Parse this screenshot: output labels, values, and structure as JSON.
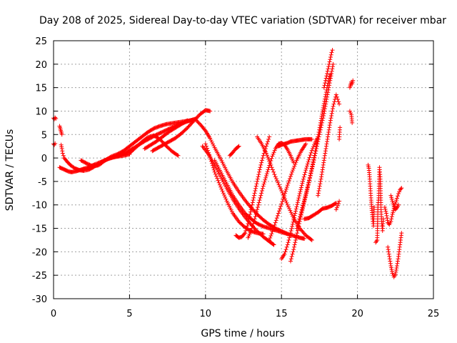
{
  "chart_data": {
    "type": "scatter",
    "title": "Day 208 of 2025, Sidereal Day-to-day VTEC variation (SDTVAR) for receiver mbar",
    "xlabel": "GPS time / hours",
    "ylabel": "SDTVAR / TECUs",
    "xlim": [
      0,
      25
    ],
    "ylim": [
      -30,
      25
    ],
    "xticks": [
      "0",
      "5",
      "10",
      "15",
      "20",
      "25"
    ],
    "yticks": [
      "25",
      "20",
      "15",
      "10",
      "5",
      "0",
      "-5",
      "-10",
      "-15",
      "-20",
      "-25",
      "-30"
    ],
    "grid": true,
    "marker": "+",
    "color": "#ff0000",
    "series": [
      {
        "x": [
          0.0,
          0.05,
          0.1,
          0.15,
          0.0,
          0.05,
          0.1
        ],
        "y": [
          8.5,
          8.3,
          8.6,
          8.4,
          3.0,
          2.8,
          3.1
        ]
      },
      {
        "x": [
          0.4,
          0.45,
          0.5,
          0.55,
          0.5,
          0.55,
          0.6,
          0.7,
          0.9,
          1.1,
          1.4,
          1.7,
          2.0,
          2.3,
          2.6,
          2.9,
          3.2,
          3.5,
          3.8,
          4.2,
          4.6,
          5.0
        ],
        "y": [
          6.8,
          6.2,
          5.6,
          5.0,
          2.8,
          2.0,
          1.0,
          0.0,
          -0.8,
          -1.5,
          -2.2,
          -2.6,
          -2.7,
          -2.5,
          -2.0,
          -1.4,
          -0.8,
          -0.3,
          0.1,
          0.3,
          0.5,
          0.8
        ]
      },
      {
        "x": [
          0.4,
          0.6,
          0.8,
          1.0,
          1.2,
          1.5,
          1.8,
          2.1,
          2.4,
          2.7,
          3.0,
          3.3,
          3.6,
          4.0,
          4.4,
          4.8,
          5.2,
          5.6,
          6.0,
          6.4,
          6.8,
          7.2,
          7.6,
          8.0,
          8.4,
          8.8,
          9.2,
          9.4
        ],
        "y": [
          -2.0,
          -2.3,
          -2.6,
          -2.9,
          -3.0,
          -2.8,
          -2.5,
          -2.2,
          -1.8,
          -1.4,
          -1.0,
          -0.6,
          -0.2,
          0.2,
          0.6,
          1.2,
          2.0,
          2.8,
          3.6,
          4.3,
          5.0,
          5.6,
          6.2,
          6.8,
          7.3,
          7.8,
          8.2,
          8.4
        ]
      },
      {
        "x": [
          1.8,
          2.2,
          2.6,
          3.0,
          3.4,
          3.8,
          4.2,
          4.6,
          5.0,
          5.4,
          5.8,
          6.2,
          6.6,
          7.0,
          7.4,
          7.8,
          8.2,
          8.6,
          9.0,
          9.3
        ],
        "y": [
          -0.5,
          -1.2,
          -1.8,
          -1.5,
          -0.5,
          0.3,
          0.8,
          1.5,
          2.5,
          3.5,
          4.5,
          5.5,
          6.3,
          6.8,
          7.2,
          7.4,
          7.6,
          7.8,
          8.0,
          8.2
        ]
      },
      {
        "x": [
          5.0,
          5.4,
          5.8,
          6.2,
          6.6,
          7.0,
          7.4,
          7.8,
          8.2
        ],
        "y": [
          1.0,
          2.2,
          3.4,
          4.4,
          4.8,
          4.0,
          2.6,
          1.4,
          0.5
        ]
      },
      {
        "x": [
          6.0,
          6.4,
          6.8,
          7.2,
          7.6,
          8.0,
          8.4,
          8.8
        ],
        "y": [
          2.0,
          2.8,
          3.6,
          4.6,
          5.6,
          6.4,
          7.2,
          8.0
        ]
      },
      {
        "x": [
          6.5,
          7.0,
          7.5,
          8.0,
          8.4,
          8.8,
          9.2,
          9.6,
          10.0,
          10.3
        ],
        "y": [
          1.5,
          2.4,
          3.3,
          4.2,
          5.2,
          6.4,
          7.8,
          9.2,
          10.2,
          10.0
        ]
      },
      {
        "x": [
          9.4,
          9.7,
          10.0,
          10.3,
          10.6,
          11.0,
          11.4,
          11.8,
          12.2,
          12.6,
          13.0,
          13.4,
          13.8,
          14.2,
          14.6,
          15.0,
          15.4
        ],
        "y": [
          8.0,
          7.0,
          5.8,
          4.2,
          2.2,
          -0.2,
          -2.8,
          -5.2,
          -7.2,
          -9.0,
          -10.6,
          -12.0,
          -13.2,
          -14.2,
          -15.0,
          -15.6,
          -16.2
        ]
      },
      {
        "x": [
          9.8,
          10.2,
          10.6,
          11.0,
          11.4,
          11.8,
          12.2,
          12.6,
          13.0,
          13.4,
          13.8,
          14.2,
          14.5
        ],
        "y": [
          2.5,
          0.8,
          -1.5,
          -4.0,
          -6.5,
          -8.8,
          -10.8,
          -12.6,
          -14.2,
          -15.6,
          -16.8,
          -17.8,
          -18.5
        ]
      },
      {
        "x": [
          10.0,
          10.3,
          10.6,
          11.0,
          11.4,
          11.8,
          12.2,
          12.6,
          13.0,
          13.4,
          13.8
        ],
        "y": [
          3.0,
          0.2,
          -3.0,
          -6.2,
          -9.2,
          -11.8,
          -13.6,
          -14.8,
          -15.6,
          -16.0,
          -16.2
        ]
      },
      {
        "x": [
          10.6,
          11.0,
          11.4,
          11.8,
          12.2,
          12.6,
          13.0,
          13.4,
          13.8,
          14.2,
          14.6,
          15.0,
          15.4,
          15.8,
          16.2,
          16.5
        ],
        "y": [
          -0.5,
          -3.0,
          -5.5,
          -8.0,
          -10.0,
          -11.8,
          -13.0,
          -14.0,
          -14.6,
          -15.0,
          -15.4,
          -15.8,
          -16.2,
          -16.6,
          -17.0,
          -17.2
        ]
      },
      {
        "x": [
          11.6,
          11.8,
          12.0,
          12.2
        ],
        "y": [
          0.5,
          1.2,
          2.0,
          2.5
        ]
      },
      {
        "x": [
          12.0,
          12.2,
          12.4,
          12.6,
          12.8,
          13.0,
          13.2,
          13.4,
          13.6,
          13.8,
          14.0,
          14.2
        ],
        "y": [
          -16.5,
          -17.0,
          -16.8,
          -16.0,
          -14.0,
          -11.0,
          -8.0,
          -5.0,
          -2.0,
          0.5,
          2.5,
          4.5
        ]
      },
      {
        "x": [
          12.8,
          13.0,
          13.2,
          13.4,
          13.6,
          13.8,
          14.0,
          14.2,
          14.4,
          14.6,
          14.8,
          15.0,
          15.2,
          15.4,
          15.6,
          15.8
        ],
        "y": [
          -17.0,
          -15.5,
          -13.5,
          -11.0,
          -8.5,
          -6.0,
          -3.8,
          -1.6,
          0.4,
          2.0,
          3.0,
          3.2,
          2.8,
          1.8,
          0.5,
          -1.0
        ]
      },
      {
        "x": [
          13.4,
          13.7,
          14.0,
          14.3,
          14.6,
          15.0,
          15.4,
          15.8,
          16.2,
          16.6,
          17.0
        ],
        "y": [
          4.5,
          3.0,
          1.0,
          -1.5,
          -4.0,
          -7.0,
          -10.0,
          -12.8,
          -15.0,
          -16.5,
          -17.5
        ]
      },
      {
        "x": [
          14.2,
          14.5,
          14.8,
          15.1,
          15.4,
          15.7,
          16.0,
          16.3,
          16.6
        ],
        "y": [
          -17.5,
          -14.8,
          -11.8,
          -8.8,
          -5.8,
          -3.0,
          -0.5,
          1.5,
          3.0
        ]
      },
      {
        "x": [
          14.8,
          15.0,
          15.2,
          15.4,
          15.6,
          15.8,
          16.0,
          16.2,
          16.4,
          16.6,
          16.8,
          17.0
        ],
        "y": [
          2.5,
          2.8,
          3.0,
          3.2,
          3.5,
          3.6,
          3.7,
          3.8,
          3.9,
          4.0,
          4.0,
          4.0
        ]
      },
      {
        "x": [
          15.0,
          15.2,
          15.4,
          15.6,
          15.8,
          16.0,
          16.2,
          16.4,
          16.6,
          16.8,
          17.0,
          17.2,
          17.4
        ],
        "y": [
          -21.5,
          -20.5,
          -18.5,
          -16.0,
          -13.2,
          -10.4,
          -7.6,
          -5.0,
          -2.6,
          -0.4,
          1.6,
          3.2,
          4.5
        ]
      },
      {
        "x": [
          15.6,
          15.8,
          16.0,
          16.2,
          16.4,
          16.6,
          16.8,
          17.0,
          17.2,
          17.4,
          17.6,
          17.8,
          18.0,
          18.2
        ],
        "y": [
          -22.0,
          -19.5,
          -16.5,
          -13.5,
          -10.8,
          -8.0,
          -5.2,
          -2.2,
          1.0,
          4.5,
          8.0,
          11.6,
          15.0,
          17.8
        ]
      },
      {
        "x": [
          16.0,
          16.3,
          16.6,
          16.9,
          17.2,
          17.5,
          17.8,
          18.0,
          18.2,
          18.4
        ],
        "y": [
          -15.0,
          -11.5,
          -7.8,
          -3.8,
          0.5,
          5.0,
          9.5,
          13.0,
          16.5,
          20.0
        ]
      },
      {
        "x": [
          17.8,
          17.9,
          18.0,
          18.1,
          18.2,
          18.3,
          18.35
        ],
        "y": [
          15.0,
          16.5,
          18.0,
          19.5,
          21.0,
          22.5,
          23.0
        ]
      },
      {
        "x": [
          16.5,
          16.8,
          17.1,
          17.4,
          17.7,
          18.0,
          18.3,
          18.6
        ],
        "y": [
          -13.0,
          -12.8,
          -12.2,
          -11.6,
          -10.8,
          -10.6,
          -10.2,
          -9.6
        ]
      },
      {
        "x": [
          17.4,
          17.6,
          17.8,
          18.0,
          18.2,
          18.4,
          18.6,
          18.8
        ],
        "y": [
          -8.0,
          -4.5,
          -0.5,
          3.5,
          7.5,
          11.0,
          13.5,
          11.5
        ]
      },
      {
        "x": [
          18.6,
          18.7,
          18.8,
          18.8,
          18.85
        ],
        "y": [
          -11.0,
          -10.2,
          -9.2,
          4.0,
          6.5
        ]
      },
      {
        "x": [
          19.5,
          19.55,
          19.6,
          19.65,
          19.7,
          19.5,
          19.55,
          19.6,
          19.65
        ],
        "y": [
          15.0,
          15.6,
          16.2,
          15.8,
          16.5,
          10.0,
          9.6,
          9.2,
          7.5
        ]
      },
      {
        "x": [
          20.7,
          20.75,
          20.8,
          20.85,
          20.9,
          20.95,
          21.0,
          21.05,
          21.1
        ],
        "y": [
          -1.5,
          -2.2,
          -4.0,
          -6.5,
          -9.0,
          -11.2,
          -13.0,
          -14.5,
          -10.5
        ]
      },
      {
        "x": [
          21.2,
          21.3,
          21.35,
          21.4,
          21.45,
          21.5,
          21.55,
          21.6,
          21.65,
          21.7
        ],
        "y": [
          -18.0,
          -17.5,
          -10.0,
          -8.5,
          -2.0,
          -4.0,
          -11.0,
          -14.0,
          -15.5,
          -13.0
        ]
      },
      {
        "x": [
          21.8,
          21.9,
          22.0,
          22.1,
          22.2,
          22.3,
          22.4,
          22.5,
          22.6,
          22.7,
          22.8,
          22.9
        ],
        "y": [
          -10.5,
          -11.8,
          -13.8,
          -14.2,
          -13.5,
          -12.0,
          -10.8,
          -9.8,
          -8.6,
          -7.6,
          -6.8,
          -6.4
        ]
      },
      {
        "x": [
          22.0,
          22.1,
          22.2,
          22.3,
          22.4,
          22.5,
          22.6,
          22.7,
          22.8,
          22.9
        ],
        "y": [
          -19.0,
          -21.0,
          -23.0,
          -24.6,
          -25.4,
          -24.8,
          -23.0,
          -21.0,
          -18.5,
          -16.0
        ]
      },
      {
        "x": [
          22.2,
          22.3,
          22.4,
          22.5,
          22.6,
          22.7
        ],
        "y": [
          -8.0,
          -9.2,
          -10.4,
          -11.0,
          -10.6,
          -10.0
        ]
      }
    ]
  }
}
